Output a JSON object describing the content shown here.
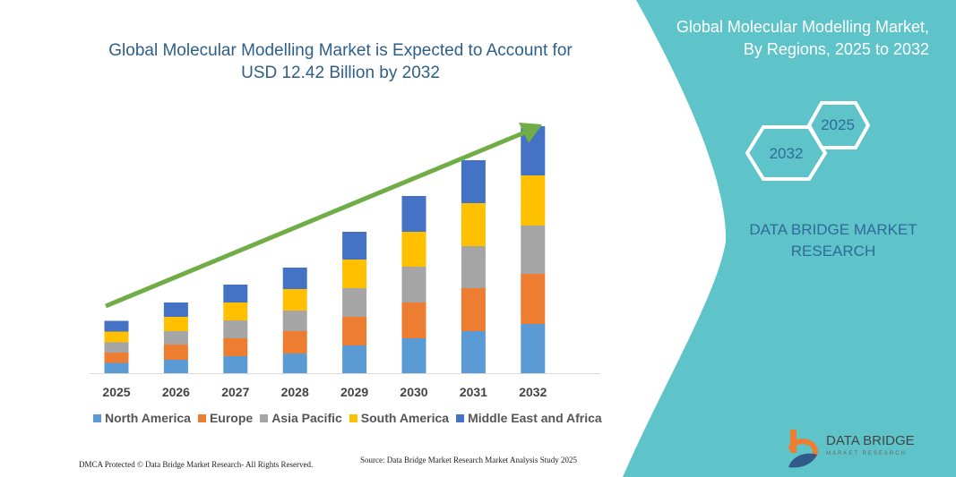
{
  "title": "Global Molecular Modelling Market is Expected to Account for USD 12.42 Billion by 2032",
  "side_panel": {
    "title_line1": "Global Molecular Modelling Market,",
    "title_line2": "By Regions, 2025 to 2032",
    "hex_start": "2025",
    "hex_end": "2032",
    "brand_line1": "DATA BRIDGE MARKET",
    "brand_line2": "RESEARCH",
    "color": "#5fc4c9"
  },
  "chart_data": {
    "type": "bar",
    "stacked": true,
    "title": "Global Molecular Modelling Market is Expected to Account for USD 12.42 Billion by 2032",
    "categories": [
      "2025",
      "2026",
      "2027",
      "2028",
      "2029",
      "2030",
      "2031",
      "2032"
    ],
    "series": [
      {
        "name": "North America",
        "color": "#5b9bd5",
        "values": [
          11.5,
          15,
          19,
          22,
          31,
          39,
          47,
          55
        ]
      },
      {
        "name": "Europe",
        "color": "#ed7d31",
        "values": [
          11.5,
          17,
          20,
          25,
          32,
          40,
          48,
          56
        ]
      },
      {
        "name": "Asia Pacific",
        "color": "#a5a5a5",
        "values": [
          11.5,
          15,
          20,
          23,
          32,
          40,
          47,
          54
        ]
      },
      {
        "name": "South America",
        "color": "#ffc000",
        "values": [
          12,
          16,
          20,
          24,
          32,
          39,
          48,
          56
        ]
      },
      {
        "name": "Middle East and Africa",
        "color": "#4472c4",
        "values": [
          12,
          16,
          20,
          24,
          31,
          40,
          48,
          55
        ]
      }
    ],
    "trend_arrow_color": "#70ad47",
    "legend": "bottom",
    "grid": false
  },
  "footer": {
    "dmca": "DMCA Protected © Data Bridge Market Research- All Rights Reserved.",
    "source": "Source: Data Bridge Market Research  Market Analysis Study 2025"
  },
  "logo": {
    "name": "DATA BRIDGE",
    "sub": "MARKET RESEARCH"
  }
}
